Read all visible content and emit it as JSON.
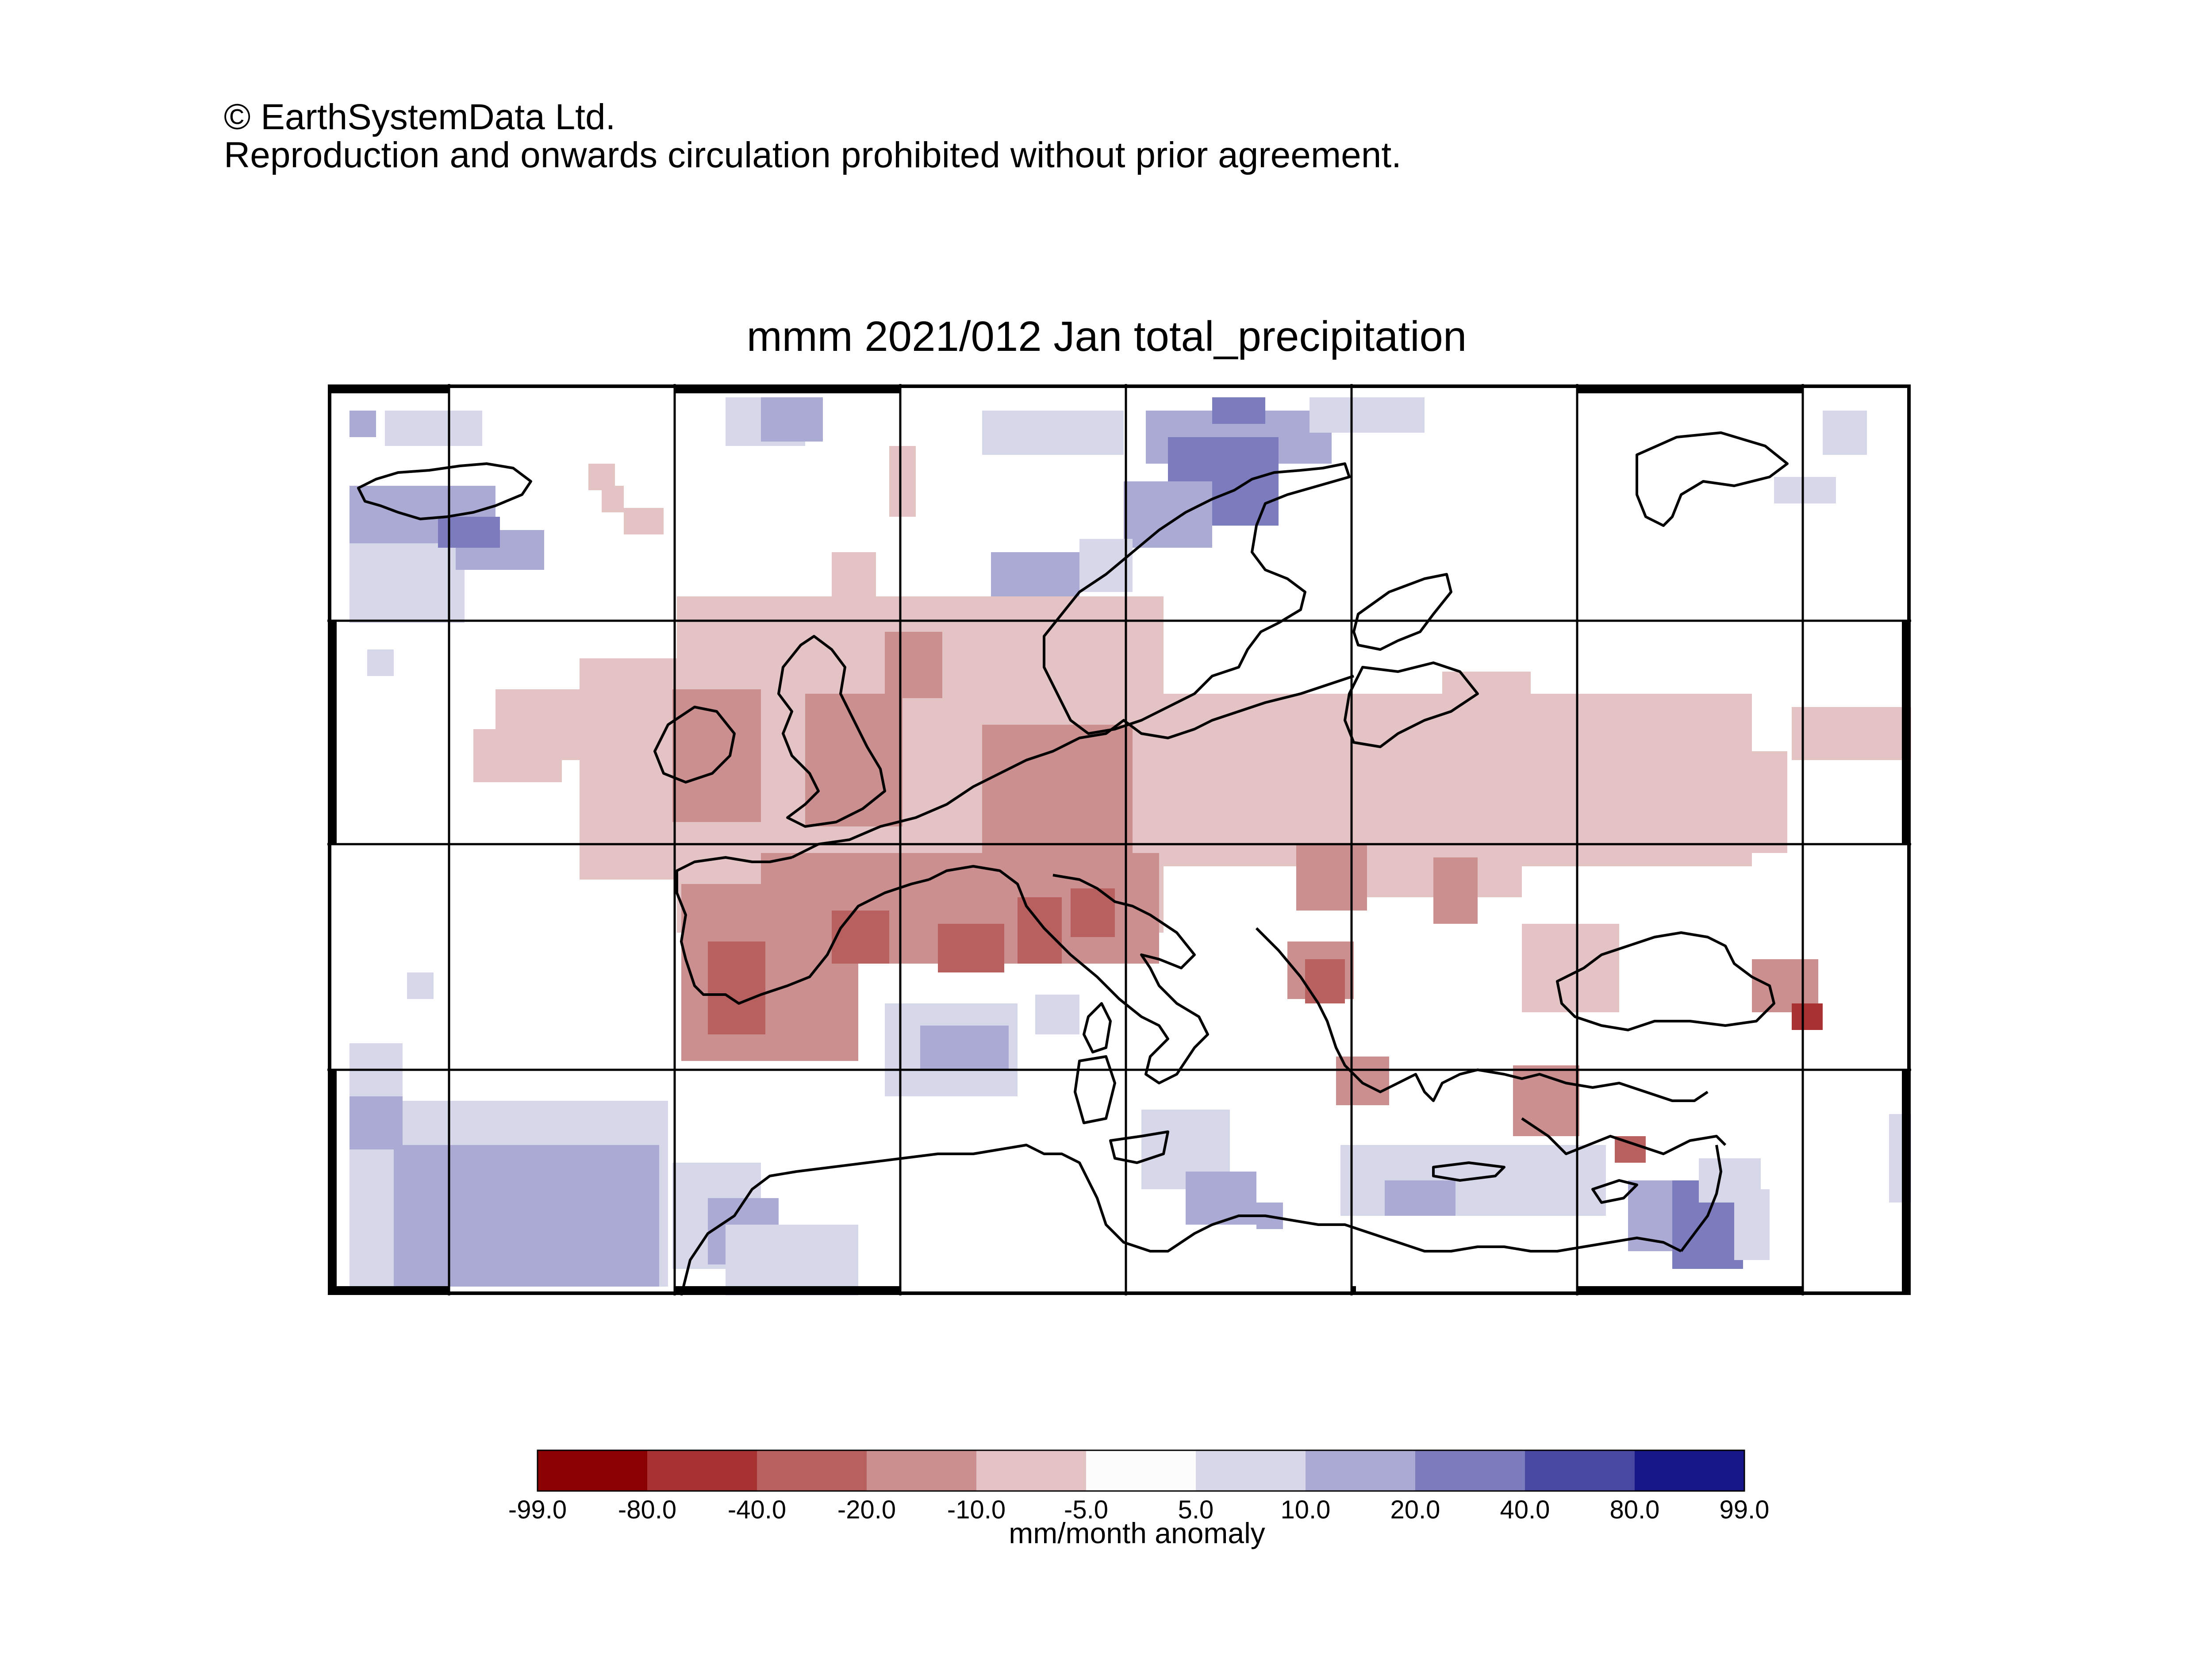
{
  "header": {
    "copyright_line1": "© EarthSystemData Ltd.",
    "copyright_line2": "Reproduction and onwards circulation prohibited without prior agreement."
  },
  "map": {
    "title": "mmm 2021/012 Jan total_precipitation",
    "projection": "equirectangular",
    "grid_lines": true,
    "coastlines": true,
    "data_layer": "gridded precipitation anomaly (mm/month)",
    "pattern": {
      "dry_anomaly_regions": [
        "Iberian Peninsula",
        "France",
        "British Isles",
        "Central Europe",
        "Eastern Europe",
        "Italy",
        "Balkans",
        "Turkey"
      ],
      "wet_anomaly_regions": [
        "Iceland",
        "Western Scandinavia",
        "Atlantic west of Iberia",
        "Western Mediterranean",
        "Eastern Mediterranean coast",
        "North Africa"
      ]
    }
  },
  "legend": {
    "units": "mm/month anomaly",
    "tick_labels": [
      "-99.0",
      "-80.0",
      "-40.0",
      "-20.0",
      "-10.0",
      "-5.0",
      "5.0",
      "10.0",
      "20.0",
      "40.0",
      "80.0",
      "99.0"
    ],
    "colors": [
      "#8b0000",
      "#a83232",
      "#b85f5f",
      "#cc8f8f",
      "#e3c3c3",
      "#fcfcfc",
      "#d7d7ea",
      "#aaaad4",
      "#7b7bbd",
      "#4848a3",
      "#17178a"
    ]
  }
}
